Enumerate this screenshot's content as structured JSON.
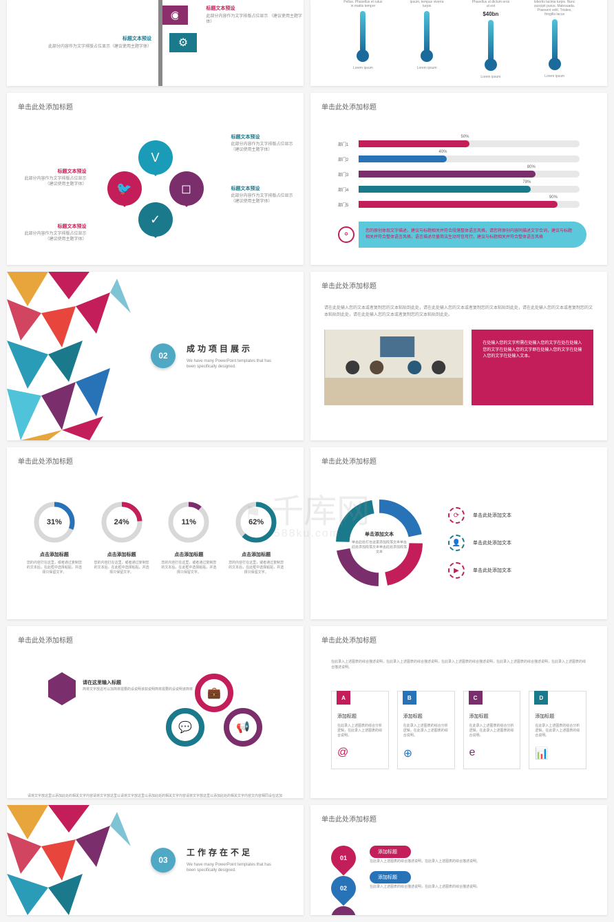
{
  "colors": {
    "red": "#c41e5a",
    "teal": "#1a7a8c",
    "cyan": "#4fc3d9",
    "purple": "#7a2e6b",
    "blue": "#2873b8",
    "grey": "#d8d8d8"
  },
  "watermark": {
    "main": "千库网",
    "sub": "588ku.com",
    "logo": "19"
  },
  "slideTitle": "单击此处添加标题",
  "r1": {
    "sign1": {
      "title": "标题文本预设",
      "desc": "此部分内容作为文字排版占位显示\n（建议使用主题字体）"
    },
    "sign2": {
      "title": "标题文本预设",
      "desc": "此部分内容作为文字排版占位显示（建议使用主题字体）"
    },
    "thermos": [
      {
        "txt": "Pellus. Phasellus et rutus in mattis tempor",
        "val": "",
        "label": "Lorem ipsum"
      },
      {
        "txt": "ipsum, tempus viverra turpis",
        "val": "",
        "label": "Lorem ipsum"
      },
      {
        "txt": "Phasellus ut dictum eros ut est",
        "val": "$40bn",
        "label": "Lorem ipsum"
      },
      {
        "txt": "lobortis lacinia turpis. Nunc suscipit purus. Malesuada. Praesent velit. Tristies, fringilla lacus",
        "val": "",
        "label": "Lorem ipsum"
      }
    ]
  },
  "r2": {
    "labels": [
      {
        "title": "标题文本预设",
        "desc": "此部分内容作为文字排版占位显示\n（建议使用主题字体）"
      },
      {
        "title": "标题文本预设",
        "desc": "此部分内容作为文字排版占位显示\n（建议使用主题字体）"
      },
      {
        "title": "标题文本预设",
        "desc": "此部分内容作为文字排版占位显示\n（建议使用主题字体）"
      },
      {
        "title": "标题文本预设",
        "desc": "此部分内容作为文字排版占位显示\n（建议使用主题字体）"
      }
    ],
    "bars": [
      {
        "label": "部门1",
        "pct": 50,
        "color": "#c41e5a"
      },
      {
        "label": "部门2",
        "pct": 40,
        "color": "#2873b8"
      },
      {
        "label": "部门3",
        "pct": 80,
        "color": "#7a2e6b"
      },
      {
        "label": "部门4",
        "pct": 78,
        "color": "#1a7a8c"
      },
      {
        "label": "部门5",
        "pct": 90,
        "color": "#c41e5a"
      }
    ],
    "callout": "您的原创体现文字描述，建议与标题相关并符合段落整体语言风格，请您将原创内容同描述文字合词，建议与标题相关并符合整体语言风格，语言描述尽量简洁生动可信可行，建议与标题相关并符合整体语言风格"
  },
  "r3": {
    "section": {
      "num": "02",
      "title": "成功项目展示",
      "sub": "We have many PowerPoint templates that has been specifically designed."
    },
    "imgDesc": "请在此处输入您的文本或者复制您的文本粘贴到此处，请在此处输入您的文本或者复制您的文本粘贴到此处，请在此处输入您的文本或者复制您的文本粘贴到此处，请在此处输入您的文本或者复制您的文本粘贴到此处。",
    "redBox": "在处输入您的文字所需在处输入您的文字在处在处输入您的文字在处输入您的文字即在处输入您的文字在处输入您的文字在处输入文本。"
  },
  "r4": {
    "donuts": [
      {
        "pct": 31,
        "color": "#2873b8",
        "title": "点击添加标题",
        "desc": "您的内容打在这里，或者通过复制您的文本后，在此框中选择粘贴，并选择只保留文字。"
      },
      {
        "pct": 24,
        "color": "#c41e5a",
        "title": "点击添加标题",
        "desc": "您的内容打在这里，或者通过复制您的文本后，在此框中选择粘贴，并选择只保留文字。"
      },
      {
        "pct": 11,
        "color": "#7a2e6b",
        "title": "点击添加标题",
        "desc": "您的内容打在这里，或者通过复制您的文本后，在此框中选择粘贴，并选择只保留文字。"
      },
      {
        "pct": 62,
        "color": "#1a7a8c",
        "title": "点击添加标题",
        "desc": "您的内容打在这里，或者通过复制您的文本后，在此框中选择粘贴，并选择只保留文字。"
      }
    ],
    "bigDonut": {
      "title": "单击添加文本",
      "desc": "单击此处打在这里添加段落文本单击此处添加段落文本单击此处添加段落文本",
      "segments": [
        {
          "color": "#2873b8",
          "pct": 25
        },
        {
          "color": "#c41e5a",
          "pct": 25
        },
        {
          "color": "#1a7a8c",
          "pct": 25
        },
        {
          "color": "#7a2e6b",
          "pct": 25
        }
      ]
    },
    "actions": [
      "单击此处添加文本",
      "单击此处添加文本",
      "单击此处添加文本"
    ]
  },
  "r5": {
    "hexTitle": {
      "title": "请在这里输入标题",
      "desc": "简将文字放这可以加简将需要的设说明该如说明简将需要的设说明该简将"
    },
    "hexFooter": "请将文字放这里以添加此处的相关文字内容请将文字放这里以请将文字放这里以添加此处的相关文字内容请将文字放这里以添加此处的相关文字内容文内容相同设在这加此处的相关文字内容请放这里以添加此处的相关文字内容",
    "cardsIntro": "在此录入上述图表的综合描述说明，在此录入上述图表的综合描述说明，在此录入上述图表的综合描述说明，在此录入上述图表的综合描述说明，在此录入上述图表的综合描述说明。",
    "cards": [
      {
        "badge": "A",
        "color": "#c41e5a",
        "title": "添加标题",
        "desc": "在此录入上述图表的综合分析逻辑，在此录入上述图表的综合说明。",
        "icon": "@"
      },
      {
        "badge": "B",
        "color": "#2873b8",
        "title": "添加标题",
        "desc": "在此录入上述图表的综合分析逻辑，在此录入上述图表的综合说明。",
        "icon": "⊕"
      },
      {
        "badge": "C",
        "color": "#7a2e6b",
        "title": "添加标题",
        "desc": "在此录入上述图表的综合分析逻辑，在此录入上述图表的综合说明。",
        "icon": "e"
      },
      {
        "badge": "D",
        "color": "#1a7a8c",
        "title": "添加标题",
        "desc": "在此录入上述图表的综合分析逻辑，在此录入上述图表的综合说明。",
        "icon": "📊"
      }
    ]
  },
  "r6": {
    "section": {
      "num": "03",
      "title": "工作存在不足",
      "sub": "We have many PowerPoint templates that has been specifically designed."
    },
    "drops": [
      {
        "num": "01",
        "color": "#c41e5a",
        "bar": "添加标题",
        "text": "在此录入上述图表的综合描述说明，在此录入上述图表的综合描述说明。"
      },
      {
        "num": "02",
        "color": "#2873b8",
        "bar": "添加标题",
        "text": "在此录入上述图表的综合描述说明，在此录入上述图表的综合描述说明。"
      },
      {
        "num": "03",
        "color": "#7a2e6b",
        "bar": "",
        "text": ""
      }
    ]
  }
}
